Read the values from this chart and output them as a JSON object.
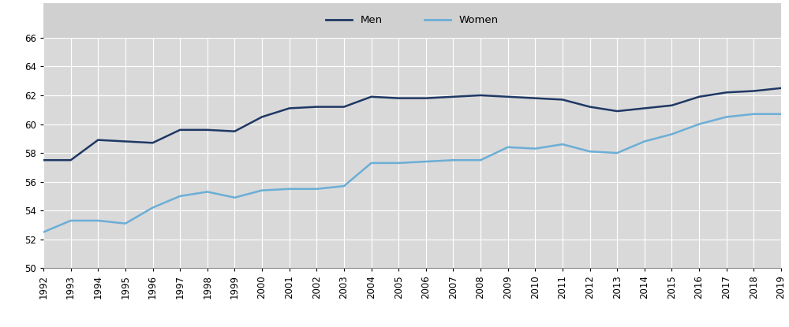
{
  "years": [
    1992,
    1993,
    1994,
    1995,
    1996,
    1997,
    1998,
    1999,
    2000,
    2001,
    2002,
    2003,
    2004,
    2005,
    2006,
    2007,
    2008,
    2009,
    2010,
    2011,
    2012,
    2013,
    2014,
    2015,
    2016,
    2017,
    2018,
    2019
  ],
  "men": [
    57.5,
    57.5,
    58.9,
    58.8,
    58.7,
    59.6,
    59.6,
    59.5,
    60.5,
    61.1,
    61.2,
    61.2,
    61.9,
    61.8,
    61.8,
    61.9,
    62.0,
    61.9,
    61.8,
    61.7,
    61.2,
    60.9,
    61.1,
    61.3,
    61.9,
    62.2,
    62.3,
    62.5
  ],
  "women": [
    52.5,
    53.3,
    53.3,
    53.1,
    54.2,
    55.0,
    55.3,
    54.9,
    55.4,
    55.5,
    55.5,
    55.7,
    57.3,
    57.3,
    57.4,
    57.5,
    57.5,
    58.4,
    58.3,
    58.6,
    58.1,
    58.0,
    58.8,
    59.3,
    60.0,
    60.5,
    60.7,
    60.7
  ],
  "men_color": "#1f3864",
  "women_color": "#6baed6",
  "legend_bg": "#d0d0d0",
  "plot_bg": "#d9d9d9",
  "outer_bg": "#ffffff",
  "header_bg": "#d0d0d0",
  "ylim": [
    50,
    66
  ],
  "yticks": [
    50,
    52,
    54,
    56,
    58,
    60,
    62,
    64,
    66
  ],
  "line_width": 1.8,
  "legend_labels": [
    "Men",
    "Women"
  ],
  "grid_color": "#ffffff"
}
